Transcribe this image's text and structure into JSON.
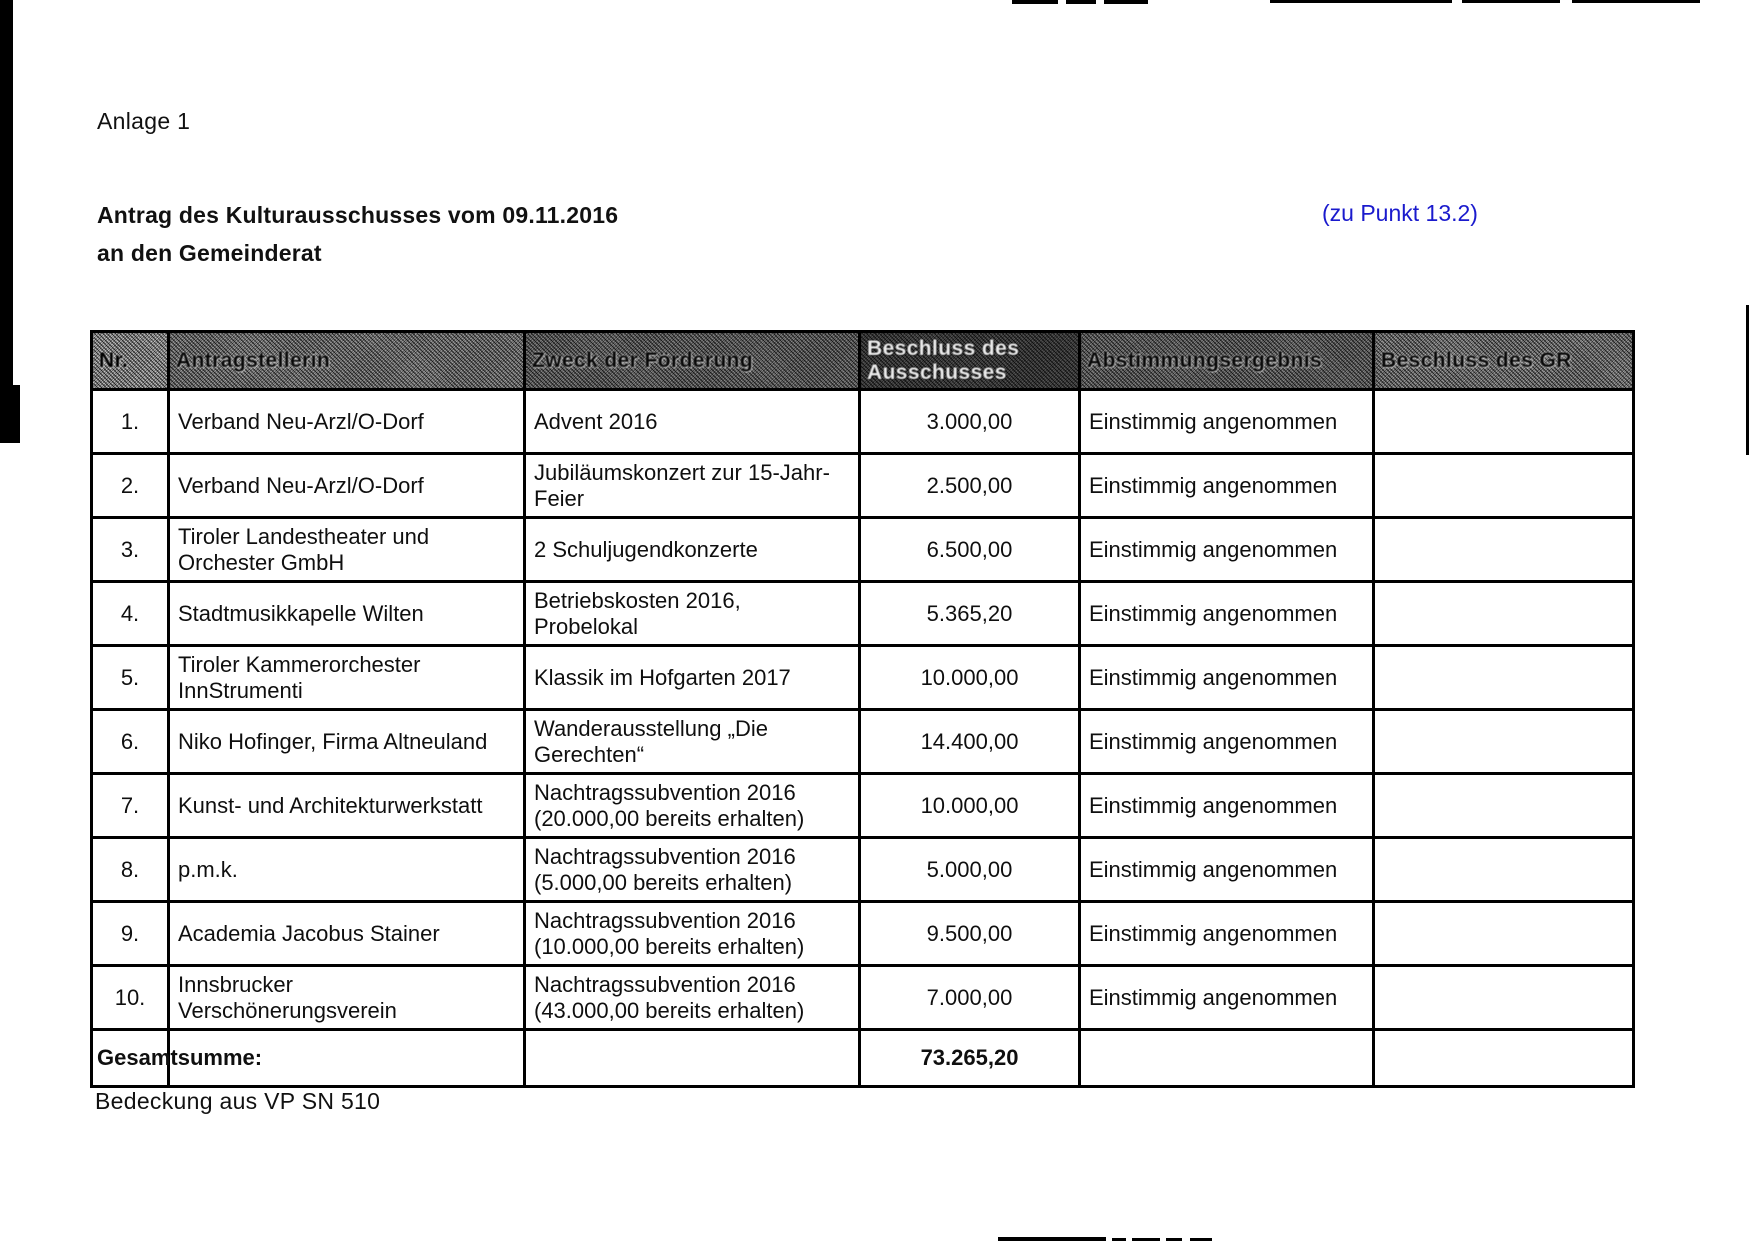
{
  "page": {
    "anlage_label": "Anlage 1",
    "heading_line1": "Antrag des Kulturausschusses vom 09.11.2016",
    "heading_line2": "an den Gemeinderat",
    "punkt_ref": "(zu Punkt 13.2)",
    "footer_note": "Bedeckung aus VP SN 510",
    "accent_blue": "#1a1acd"
  },
  "table": {
    "columns": [
      "Nr.",
      "Antragstellerin",
      "Zweck der Förderung",
      "Beschluss des Ausschusses",
      "Abstimmungsergebnis",
      "Beschluss des GR"
    ],
    "rows": [
      {
        "nr": "1.",
        "antragstellerin": "Verband Neu-Arzl/O-Dorf",
        "zweck": "Advent 2016",
        "betrag": "3.000,00",
        "abstimmung": "Einstimmig angenommen",
        "beschluss_gr": ""
      },
      {
        "nr": "2.",
        "antragstellerin": "Verband Neu-Arzl/O-Dorf",
        "zweck": "Jubiläumskonzert zur 15-Jahr-\nFeier",
        "betrag": "2.500,00",
        "abstimmung": "Einstimmig angenommen",
        "beschluss_gr": ""
      },
      {
        "nr": "3.",
        "antragstellerin": "Tiroler Landestheater und\nOrchester GmbH",
        "zweck": "2 Schuljugendkonzerte",
        "betrag": "6.500,00",
        "abstimmung": "Einstimmig angenommen",
        "beschluss_gr": ""
      },
      {
        "nr": "4.",
        "antragstellerin": "Stadtmusikkapelle Wilten",
        "zweck": "Betriebskosten 2016,\nProbelokal",
        "betrag": "5.365,20",
        "abstimmung": "Einstimmig angenommen",
        "beschluss_gr": ""
      },
      {
        "nr": "5.",
        "antragstellerin": "Tiroler Kammerorchester\nInnStrumenti",
        "zweck": "Klassik im Hofgarten 2017",
        "betrag": "10.000,00",
        "abstimmung": "Einstimmig angenommen",
        "beschluss_gr": ""
      },
      {
        "nr": "6.",
        "antragstellerin": "Niko Hofinger, Firma Altneuland",
        "zweck": "Wanderausstellung „Die\nGerechten“",
        "betrag": "14.400,00",
        "abstimmung": "Einstimmig angenommen",
        "beschluss_gr": ""
      },
      {
        "nr": "7.",
        "antragstellerin": "Kunst- und Architekturwerkstatt",
        "zweck": "Nachtragssubvention 2016\n(20.000,00 bereits erhalten)",
        "betrag": "10.000,00",
        "abstimmung": "Einstimmig angenommen",
        "beschluss_gr": ""
      },
      {
        "nr": "8.",
        "antragstellerin": "p.m.k.",
        "zweck": "Nachtragssubvention 2016\n(5.000,00 bereits erhalten)",
        "betrag": "5.000,00",
        "abstimmung": "Einstimmig angenommen",
        "beschluss_gr": ""
      },
      {
        "nr": "9.",
        "antragstellerin": "Academia Jacobus Stainer",
        "zweck": "Nachtragssubvention 2016\n(10.000,00 bereits erhalten)",
        "betrag": "9.500,00",
        "abstimmung": "Einstimmig angenommen",
        "beschluss_gr": ""
      },
      {
        "nr": "10.",
        "antragstellerin": "Innsbrucker\nVerschönerungsverein",
        "zweck": "Nachtragssubvention 2016\n(43.000,00 bereits erhalten)",
        "betrag": "7.000,00",
        "abstimmung": "Einstimmig angenommen",
        "beschluss_gr": ""
      }
    ],
    "total": {
      "label": "Gesamtsumme:",
      "betrag": "73.265,20"
    }
  }
}
